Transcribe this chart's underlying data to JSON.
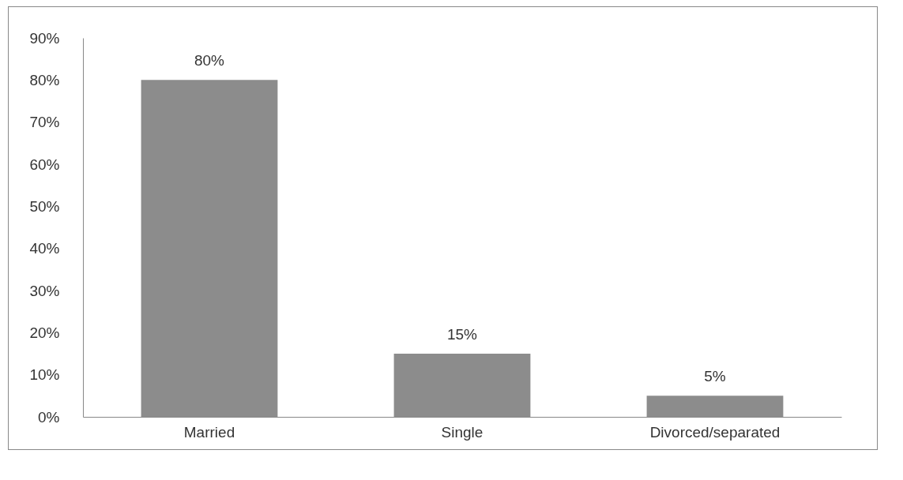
{
  "chart_data": {
    "type": "bar",
    "categories": [
      "Married",
      "Single",
      "Divorced/separated"
    ],
    "values": [
      80,
      15,
      5
    ],
    "value_labels": [
      "80%",
      "15%",
      "5%"
    ],
    "color": "#8c8c8c",
    "ylim": [
      0,
      90
    ],
    "yticks": [
      {
        "value": 0,
        "label": "0%"
      },
      {
        "value": 10,
        "label": "10%"
      },
      {
        "value": 20,
        "label": "20%"
      },
      {
        "value": 30,
        "label": "30%"
      },
      {
        "value": 40,
        "label": "40%"
      },
      {
        "value": 50,
        "label": "50%"
      },
      {
        "value": 60,
        "label": "60%"
      },
      {
        "value": 70,
        "label": "70%"
      },
      {
        "value": 80,
        "label": "80%"
      },
      {
        "value": 90,
        "label": "90%"
      }
    ],
    "grid": false
  }
}
